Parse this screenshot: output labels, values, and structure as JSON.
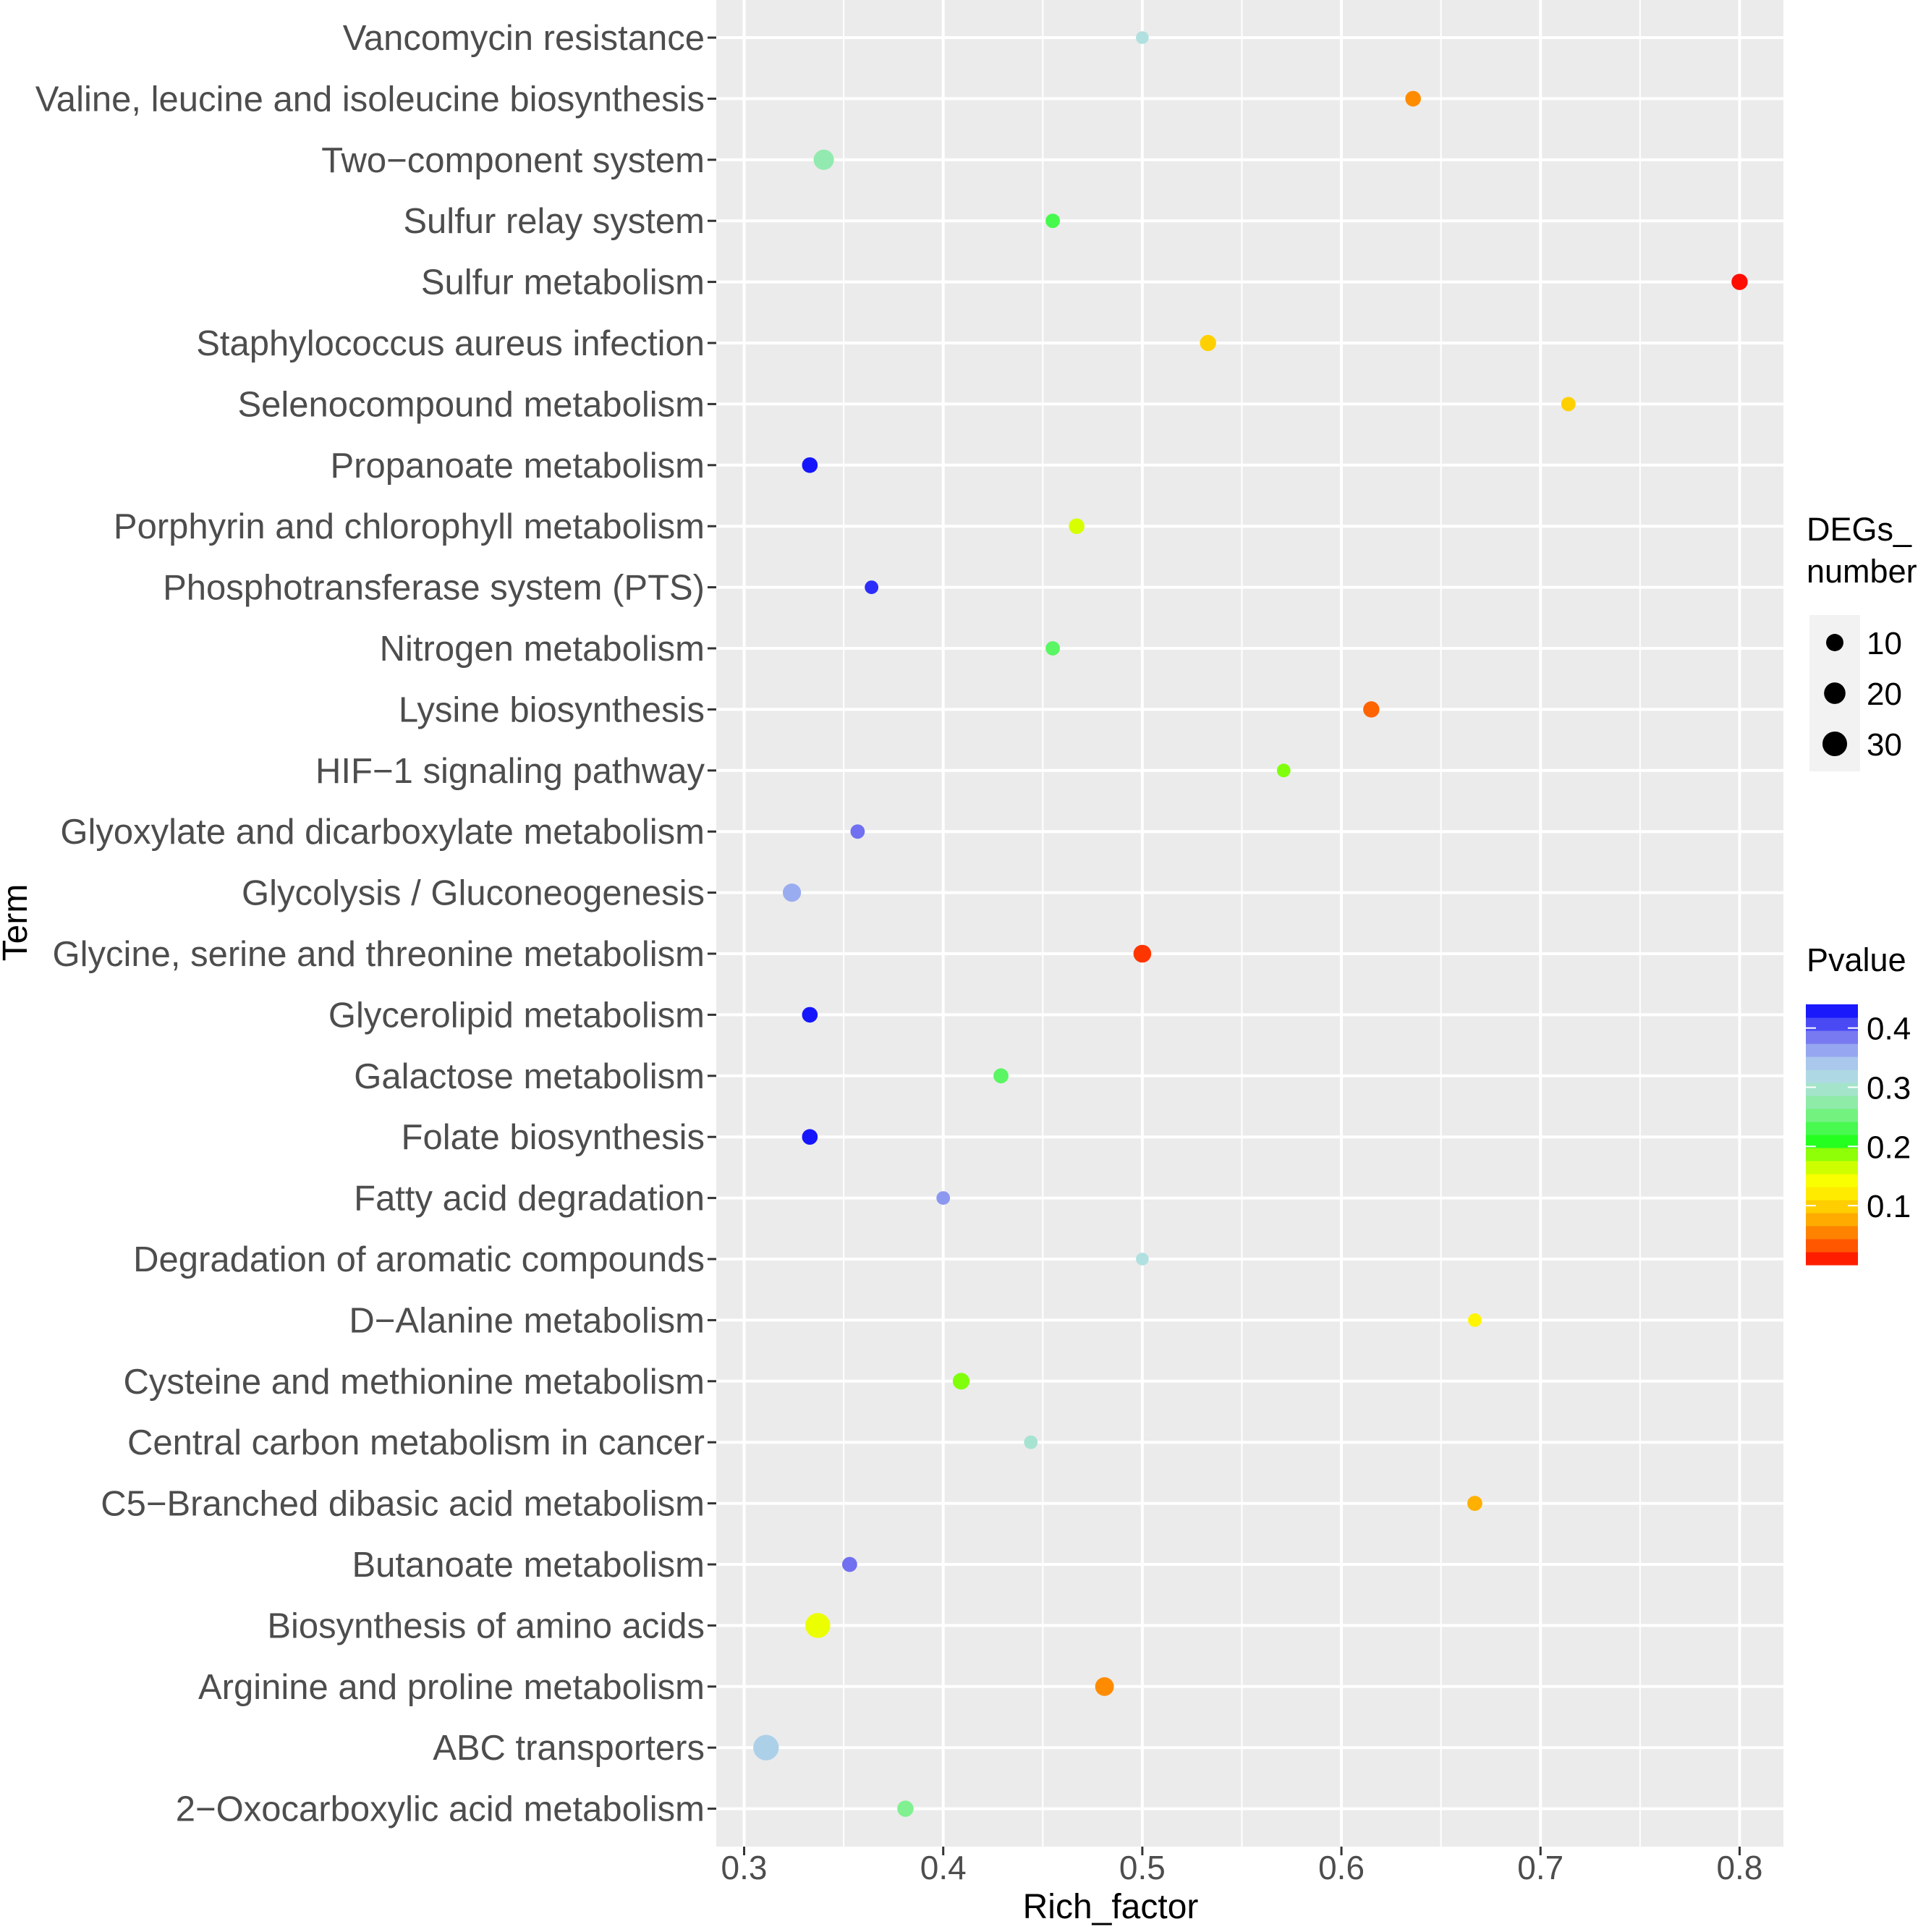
{
  "chart_data": {
    "type": "scatter",
    "title": "",
    "xlabel": "Rich_factor",
    "ylabel": "Term",
    "xlim": [
      0.286,
      0.822
    ],
    "xticks": [
      "0.3",
      "0.4",
      "0.5",
      "0.6",
      "0.7",
      "0.8"
    ],
    "terms": [
      {
        "label": "Vancomycin resistance",
        "rich_factor": 0.5,
        "degs_number": 3,
        "pvalue": 0.31
      },
      {
        "label": "Valine, leucine and isoleucine biosynthesis",
        "rich_factor": 0.636,
        "degs_number": 7,
        "pvalue": 0.06
      },
      {
        "label": "Two−component system",
        "rich_factor": 0.34,
        "degs_number": 17,
        "pvalue": 0.28
      },
      {
        "label": "Sulfur relay system",
        "rich_factor": 0.455,
        "degs_number": 5,
        "pvalue": 0.23
      },
      {
        "label": "Sulfur metabolism",
        "rich_factor": 0.8,
        "degs_number": 8,
        "pvalue": 0.005
      },
      {
        "label": "Staphylococcus aureus infection",
        "rich_factor": 0.533,
        "degs_number": 8,
        "pvalue": 0.1
      },
      {
        "label": "Selenocompound metabolism",
        "rich_factor": 0.714,
        "degs_number": 5,
        "pvalue": 0.1
      },
      {
        "label": "Propanoate metabolism",
        "rich_factor": 0.333,
        "degs_number": 7,
        "pvalue": 0.43
      },
      {
        "label": "Porphyrin and chlorophyll metabolism",
        "rich_factor": 0.467,
        "degs_number": 7,
        "pvalue": 0.16
      },
      {
        "label": "Phosphotransferase system (PTS)",
        "rich_factor": 0.364,
        "degs_number": 4,
        "pvalue": 0.42
      },
      {
        "label": "Nitrogen metabolism",
        "rich_factor": 0.455,
        "degs_number": 5,
        "pvalue": 0.24
      },
      {
        "label": "Lysine biosynthesis",
        "rich_factor": 0.615,
        "degs_number": 8,
        "pvalue": 0.04
      },
      {
        "label": "HIF−1 signaling pathway",
        "rich_factor": 0.571,
        "degs_number": 4,
        "pvalue": 0.19
      },
      {
        "label": "Glyoxylate and dicarboxylate metabolism",
        "rich_factor": 0.357,
        "degs_number": 5,
        "pvalue": 0.39
      },
      {
        "label": "Glycolysis / Gluconeogenesis",
        "rich_factor": 0.324,
        "degs_number": 12,
        "pvalue": 0.36
      },
      {
        "label": "Glycine, serine and threonine metabolism",
        "rich_factor": 0.5,
        "degs_number": 11,
        "pvalue": 0.02
      },
      {
        "label": "Glycerolipid metabolism",
        "rich_factor": 0.333,
        "degs_number": 7,
        "pvalue": 0.43
      },
      {
        "label": "Galactose metabolism",
        "rich_factor": 0.429,
        "degs_number": 6,
        "pvalue": 0.24
      },
      {
        "label": "Folate biosynthesis",
        "rich_factor": 0.333,
        "degs_number": 7,
        "pvalue": 0.43
      },
      {
        "label": "Fatty acid degradation",
        "rich_factor": 0.4,
        "degs_number": 4,
        "pvalue": 0.37
      },
      {
        "label": "Degradation of aromatic compounds",
        "rich_factor": 0.5,
        "degs_number": 3,
        "pvalue": 0.31
      },
      {
        "label": "D−Alanine metabolism",
        "rich_factor": 0.667,
        "degs_number": 4,
        "pvalue": 0.13
      },
      {
        "label": "Cysteine and methionine metabolism",
        "rich_factor": 0.409,
        "degs_number": 9,
        "pvalue": 0.19
      },
      {
        "label": "Central carbon metabolism in cancer",
        "rich_factor": 0.444,
        "degs_number": 4,
        "pvalue": 0.3
      },
      {
        "label": "C5−Branched dibasic acid metabolism",
        "rich_factor": 0.667,
        "degs_number": 6,
        "pvalue": 0.08
      },
      {
        "label": "Butanoate metabolism",
        "rich_factor": 0.353,
        "degs_number": 6,
        "pvalue": 0.39
      },
      {
        "label": "Biosynthesis of amino acids",
        "rich_factor": 0.337,
        "degs_number": 31,
        "pvalue": 0.15
      },
      {
        "label": "Arginine and proline metabolism",
        "rich_factor": 0.481,
        "degs_number": 13,
        "pvalue": 0.06
      },
      {
        "label": "ABC transporters",
        "rich_factor": 0.311,
        "degs_number": 33,
        "pvalue": 0.33
      },
      {
        "label": "2−Oxocarboxylic acid metabolism",
        "rich_factor": 0.381,
        "degs_number": 8,
        "pvalue": 0.26
      }
    ],
    "size_legend": {
      "title_line1": "DEGs_",
      "title_line2": "number",
      "entries": [
        {
          "label": "10",
          "value": 10
        },
        {
          "label": "20",
          "value": 20
        },
        {
          "label": "30",
          "value": 30
        }
      ]
    },
    "color_legend": {
      "title": "Pvalue",
      "min": 0.0,
      "max": 0.44,
      "ticks": [
        {
          "label": "0.4",
          "value": 0.4
        },
        {
          "label": "0.3",
          "value": 0.3
        },
        {
          "label": "0.2",
          "value": 0.2
        },
        {
          "label": "0.1",
          "value": 0.1
        }
      ],
      "gradient_stops": [
        {
          "value": 0.0,
          "color": "#ff0000"
        },
        {
          "value": 0.03,
          "color": "#ff5000"
        },
        {
          "value": 0.07,
          "color": "#ffa000"
        },
        {
          "value": 0.11,
          "color": "#ffe000"
        },
        {
          "value": 0.14,
          "color": "#ffff00"
        },
        {
          "value": 0.18,
          "color": "#b0ff00"
        },
        {
          "value": 0.21,
          "color": "#20ff20"
        },
        {
          "value": 0.26,
          "color": "#80f090"
        },
        {
          "value": 0.31,
          "color": "#b0e0e0"
        },
        {
          "value": 0.35,
          "color": "#a8c0f0"
        },
        {
          "value": 0.39,
          "color": "#7070f0"
        },
        {
          "value": 0.44,
          "color": "#0000ff"
        }
      ]
    },
    "panel_background": "#ebebeb",
    "grid_color": "#ffffff"
  }
}
